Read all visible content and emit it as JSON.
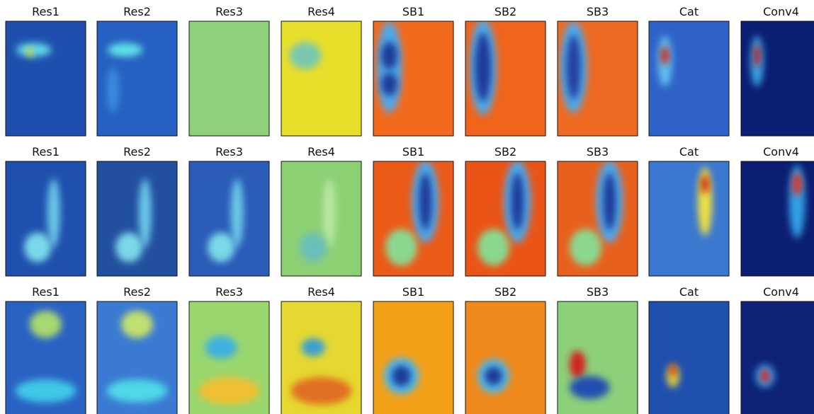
{
  "rows": [
    [
      "Res1",
      "Res2",
      "Res3",
      "Res4",
      "SB1",
      "SB2",
      "SB3",
      "Cat",
      "Conv4"
    ],
    [
      "Res1",
      "Res2",
      "Res3",
      "Res4",
      "SB1",
      "SB2",
      "SB3",
      "Cat",
      "Conv4"
    ],
    [
      "Res1",
      "Res2",
      "Res3",
      "Res4",
      "SB1",
      "SB2",
      "SB3",
      "Cat",
      "Conv4"
    ]
  ]
}
